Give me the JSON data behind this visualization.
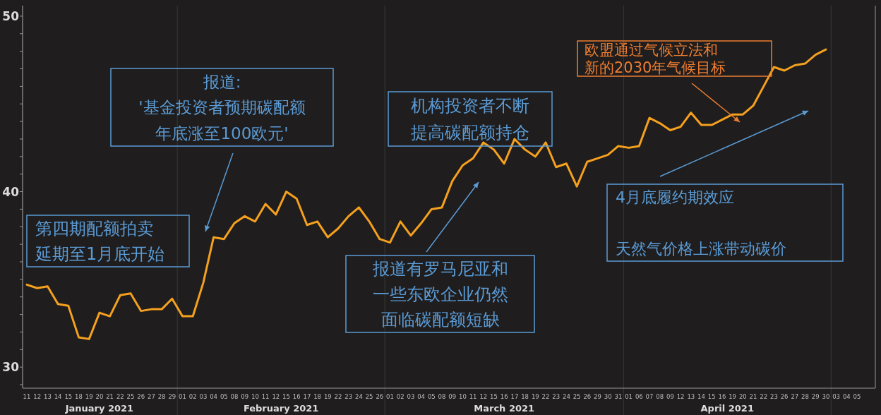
{
  "chart_data": {
    "type": "line",
    "categories": [
      "11",
      "12",
      "13",
      "14",
      "15",
      "18",
      "19",
      "20",
      "21",
      "22",
      "25",
      "26",
      "27",
      "28",
      "29",
      "01",
      "02",
      "03",
      "04",
      "05",
      "08",
      "09",
      "10",
      "11",
      "12",
      "15",
      "16",
      "17",
      "18",
      "19",
      "22",
      "23",
      "24",
      "25",
      "26",
      "01",
      "02",
      "03",
      "04",
      "05",
      "08",
      "09",
      "10",
      "11",
      "12",
      "15",
      "16",
      "17",
      "18",
      "19",
      "22",
      "23",
      "24",
      "25",
      "26",
      "29",
      "30",
      "31",
      "01",
      "06",
      "07",
      "08",
      "09",
      "12",
      "13",
      "14",
      "15",
      "16",
      "19",
      "20",
      "21",
      "22",
      "23",
      "26",
      "27",
      "28",
      "29",
      "30",
      "03",
      "04",
      "05"
    ],
    "series": [
      {
        "color": "#f5a01e",
        "values": [
          34.7,
          34.5,
          34.6,
          33.6,
          33.5,
          31.7,
          31.6,
          33.1,
          32.9,
          34.1,
          34.2,
          33.2,
          33.3,
          33.3,
          33.9,
          32.9,
          32.9,
          34.8,
          37.4,
          37.3,
          38.2,
          38.6,
          38.3,
          39.3,
          38.7,
          40.0,
          39.6,
          38.1,
          38.3,
          37.4,
          37.9,
          38.6,
          39.1,
          38.3,
          37.3,
          37.1,
          38.3,
          37.5,
          38.2,
          39.0,
          39.1,
          40.6,
          41.5,
          41.9,
          42.8,
          42.4,
          41.6,
          43.0,
          42.4,
          42.0,
          42.8,
          41.4,
          41.6,
          40.3,
          41.7,
          41.9,
          42.1,
          42.6,
          42.5,
          42.6,
          44.2,
          43.9,
          43.5,
          43.7,
          44.5,
          43.8,
          43.8,
          44.1,
          44.4,
          44.4,
          44.9,
          46.0,
          47.1,
          46.9,
          47.2,
          47.3,
          47.8,
          48.1,
          null,
          null,
          null
        ]
      }
    ],
    "ylim": [
      28.8,
      50.6
    ],
    "yticks": [
      {
        "value": 29,
        "label": null
      },
      30,
      {
        "value": 31,
        "label": null
      },
      {
        "value": 32,
        "label": null
      },
      {
        "value": 33,
        "label": null
      },
      {
        "value": 34,
        "label": null
      },
      {
        "value": 35,
        "label": null
      },
      {
        "value": 36,
        "label": null
      },
      {
        "value": 37,
        "label": null
      },
      {
        "value": 38,
        "label": null
      },
      {
        "value": 39,
        "label": null
      },
      40,
      {
        "value": 41,
        "label": null
      },
      {
        "value": 42,
        "label": null
      },
      {
        "value": 43,
        "label": null
      },
      {
        "value": 44,
        "label": null
      },
      {
        "value": 45,
        "label": null
      },
      {
        "value": 46,
        "label": null
      },
      {
        "value": 47,
        "label": null
      },
      {
        "value": 48,
        "label": null
      },
      {
        "value": 49,
        "label": null
      },
      50
    ],
    "annotations": [
      "第四期配额拍卖延期至1月底开始",
      "报道:'基金投资者预期碳配额年底涨至100欧元'",
      "机构投资者不断提高碳配额持仓",
      "报道有罗马尼亚和一些东欧企业仍然面临碳配额短缺",
      "欧盟通过气候立法和新的2030年气候目标",
      "4月底履约期效应",
      "天然气价格上涨带动碳价",
      "January 2021",
      "February 2021",
      "March 2021",
      "April 2021"
    ]
  }
}
